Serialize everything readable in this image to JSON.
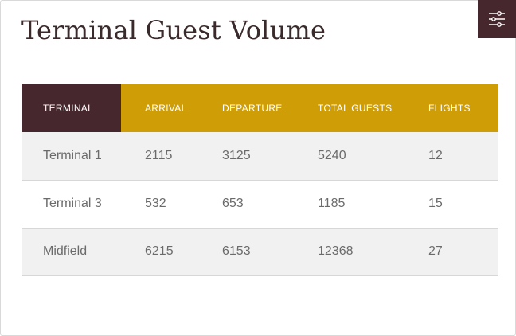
{
  "header": {
    "title": "Terminal Guest Volume",
    "settings_icon": "sliders-icon"
  },
  "colors": {
    "header_dark": "#46272d",
    "header_gold": "#cf9e07",
    "row_alt": "#f1f1f1"
  },
  "table": {
    "columns": [
      "TERMINAL",
      "ARRIVAL",
      "DEPARTURE",
      "TOTAL GUESTS",
      "FLIGHTS"
    ],
    "rows": [
      [
        "Terminal 1",
        "2115",
        "3125",
        "5240",
        "12"
      ],
      [
        "Terminal 3",
        "532",
        "653",
        "1185",
        "15"
      ],
      [
        "Midfield",
        "6215",
        "6153",
        "12368",
        "27"
      ]
    ]
  }
}
